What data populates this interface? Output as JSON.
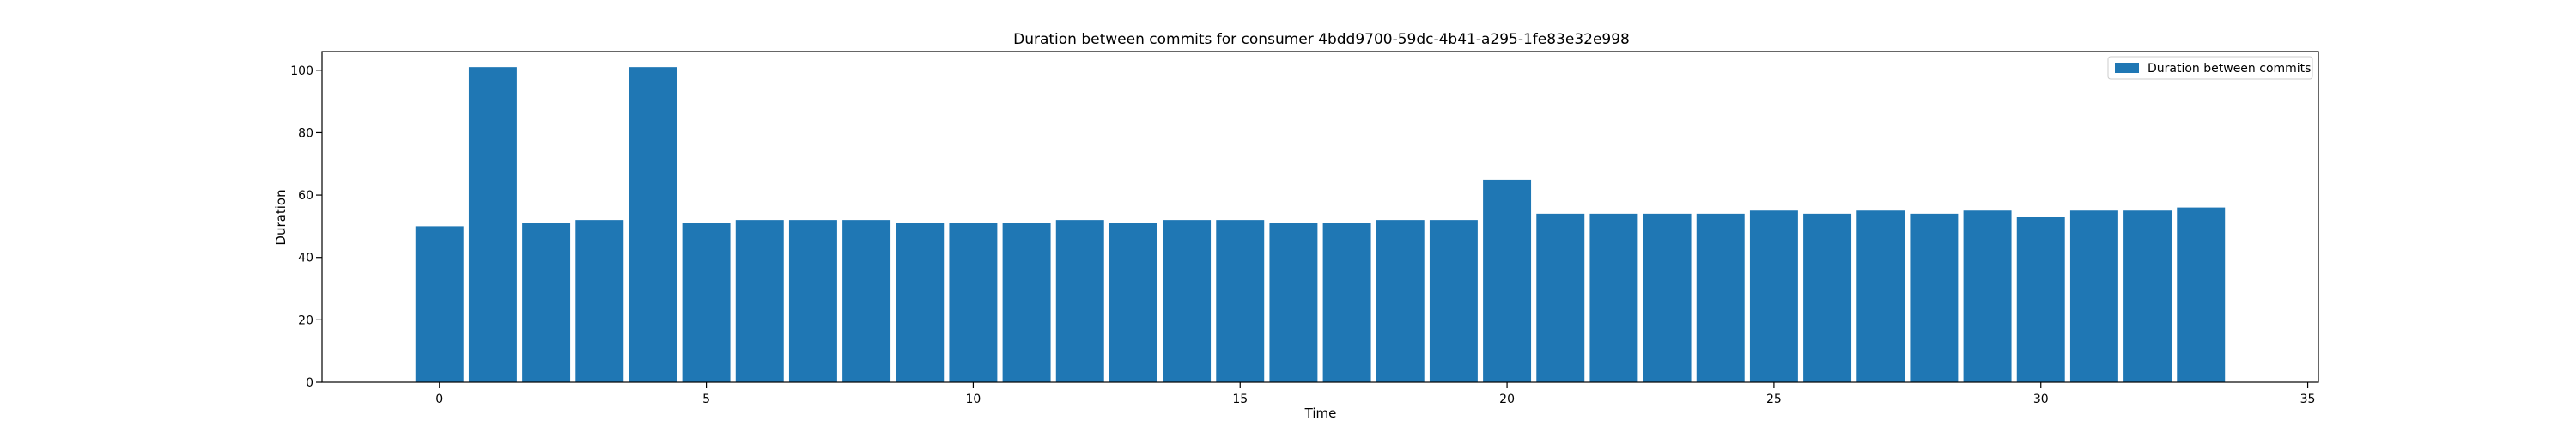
{
  "chart_data": {
    "type": "bar",
    "title": "Duration between commits for consumer 4bdd9700-59dc-4b41-a295-1fe83e32e998",
    "xlabel": "Time",
    "ylabel": "Duration",
    "x": [
      0,
      1,
      2,
      3,
      4,
      5,
      6,
      7,
      8,
      9,
      10,
      11,
      12,
      13,
      14,
      15,
      16,
      17,
      18,
      19,
      20,
      21,
      22,
      23,
      24,
      25,
      26,
      27,
      28,
      29,
      30,
      31,
      32,
      33
    ],
    "series": [
      {
        "name": "Duration between commits",
        "color": "#1f77b4",
        "values": [
          50,
          101,
          51,
          52,
          101,
          51,
          52,
          52,
          52,
          51,
          51,
          51,
          52,
          51,
          52,
          52,
          51,
          51,
          52,
          52,
          65,
          54,
          54,
          54,
          54,
          55,
          54,
          55,
          54,
          55,
          53,
          55,
          55,
          56
        ]
      }
    ],
    "xlim": [
      -2.2,
      35.2
    ],
    "ylim": [
      0,
      106
    ],
    "xticks": [
      0,
      5,
      10,
      15,
      20,
      25,
      30,
      35
    ],
    "yticks": [
      0,
      20,
      40,
      60,
      80,
      100
    ],
    "grid": false,
    "legend": "top-right"
  }
}
